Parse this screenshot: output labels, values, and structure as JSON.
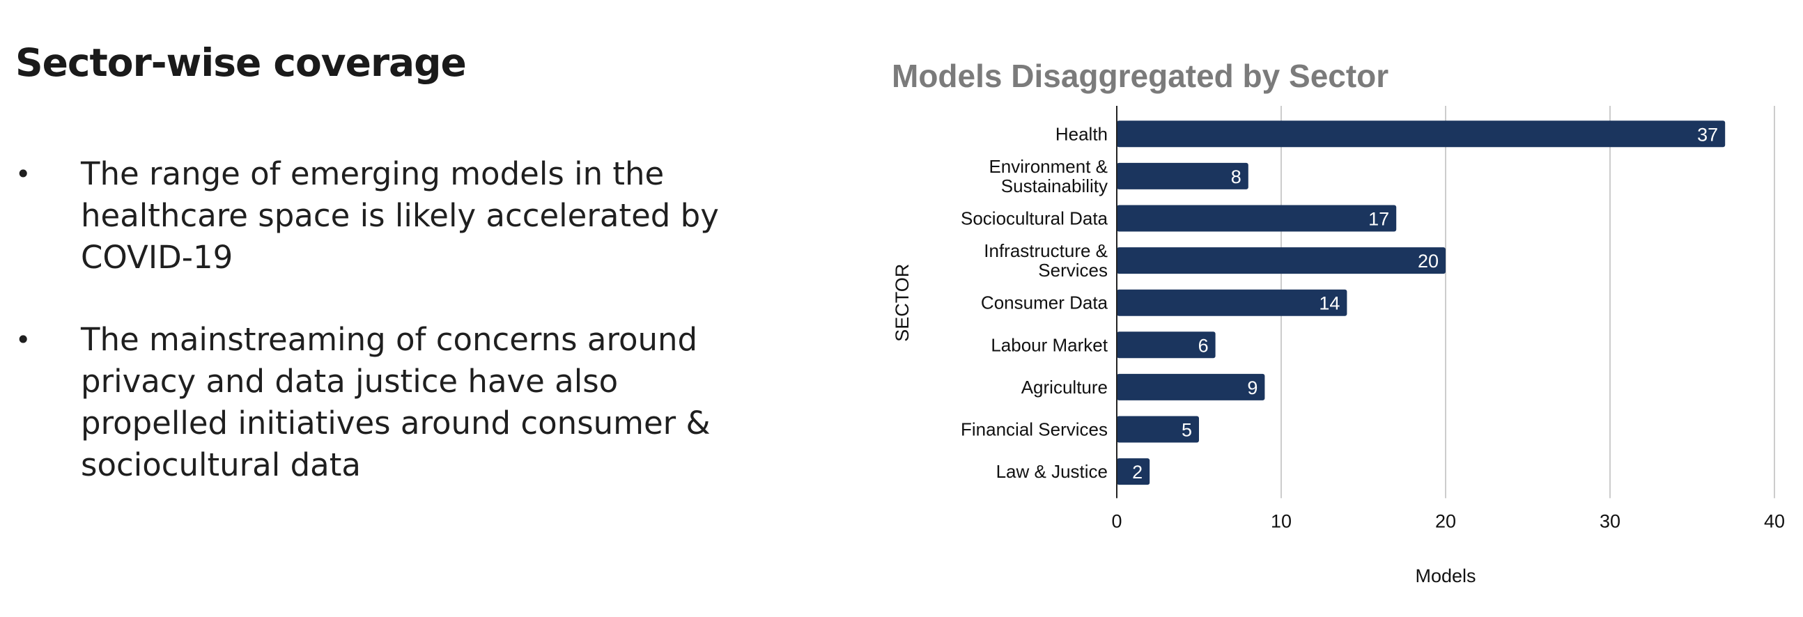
{
  "slide": {
    "title": "Sector-wise coverage",
    "bullets": [
      {
        "marker": "•",
        "lines": [
          "The range of emerging models in the",
          "healthcare space is likely accelerated by",
          "COVID-19"
        ]
      },
      {
        "marker": "•",
        "lines": [
          "The mainstreaming of concerns around",
          "privacy and data justice have also",
          "propelled initiatives around consumer &",
          "sociocultural data"
        ]
      }
    ]
  },
  "chart_data": {
    "type": "bar",
    "orientation": "horizontal",
    "title": "Models Disaggregated by Sector",
    "xlabel": "Models",
    "ylabel": "SECTOR",
    "categories": [
      [
        "Health"
      ],
      [
        "Environment &",
        "Sustainability"
      ],
      [
        "Sociocultural Data"
      ],
      [
        "Infrastructure &",
        "Services"
      ],
      [
        "Consumer Data"
      ],
      [
        "Labour Market"
      ],
      [
        "Agriculture"
      ],
      [
        "Financial Services"
      ],
      [
        "Law & Justice"
      ]
    ],
    "values": [
      37,
      8,
      17,
      20,
      14,
      6,
      9,
      5,
      2
    ],
    "xlim": [
      0,
      40
    ],
    "xticks": [
      0,
      10,
      20,
      30,
      40
    ],
    "grid": true,
    "data_labels": true,
    "colors": {
      "bar": "#1b355e",
      "bar_label": "#ffffff",
      "grid": "#cccccc",
      "axis": "#222222",
      "text": "#111111"
    }
  }
}
